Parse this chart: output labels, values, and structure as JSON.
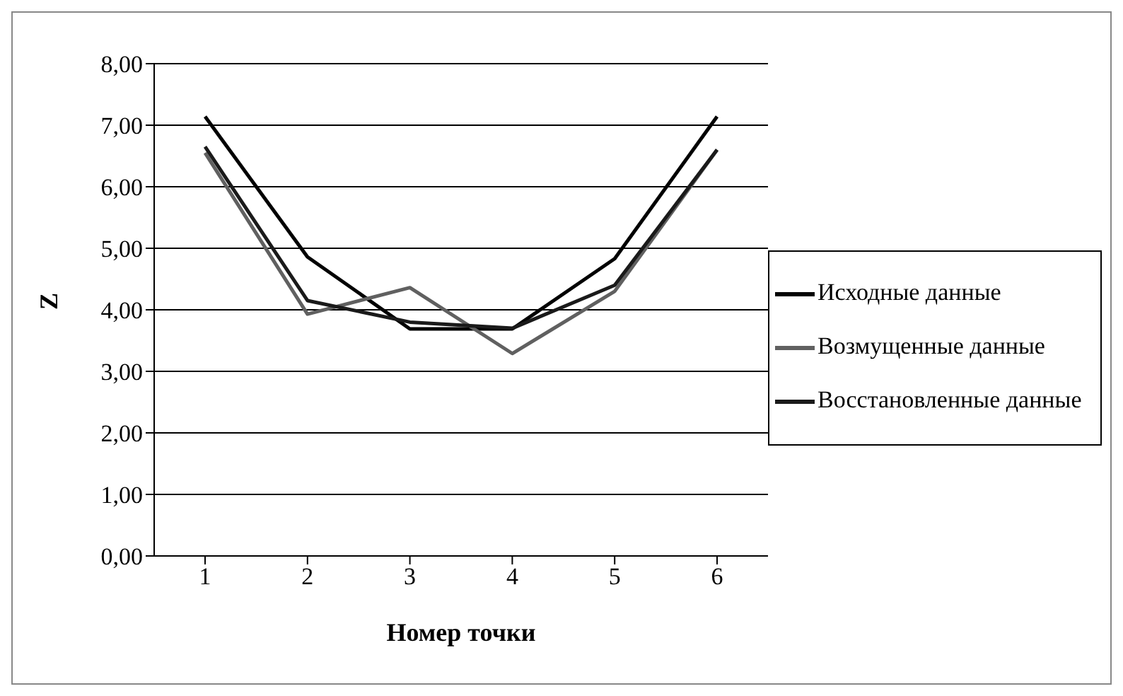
{
  "chart_data": {
    "type": "line",
    "xlabel": "Номер точки",
    "ylabel": "Z",
    "categories": [
      "1",
      "2",
      "3",
      "4",
      "5",
      "6"
    ],
    "series": [
      {
        "name": "Исходные данные",
        "color": "#000000",
        "values": [
          7.14,
          4.86,
          3.69,
          3.69,
          4.83,
          7.14
        ]
      },
      {
        "name": "Возмущенные данные",
        "color": "#606060",
        "values": [
          6.55,
          3.93,
          4.36,
          3.29,
          4.3,
          6.6
        ]
      },
      {
        "name": "Восстановленные данные",
        "color": "#1a1a1a",
        "values": [
          6.65,
          4.15,
          3.8,
          3.7,
          4.4,
          6.6
        ]
      }
    ],
    "ylim": [
      0,
      8
    ],
    "yticks": [
      {
        "value": 0,
        "label": "0,00"
      },
      {
        "value": 1,
        "label": "1,00"
      },
      {
        "value": 2,
        "label": "2,00"
      },
      {
        "value": 3,
        "label": "3,00"
      },
      {
        "value": 4,
        "label": "4,00"
      },
      {
        "value": 5,
        "label": "5,00"
      },
      {
        "value": 6,
        "label": "6,00"
      },
      {
        "value": 7,
        "label": "7,00"
      },
      {
        "value": 8,
        "label": "8,00"
      }
    ],
    "grid": "y",
    "legend": "right",
    "marker": "none",
    "line_style": "solid"
  }
}
